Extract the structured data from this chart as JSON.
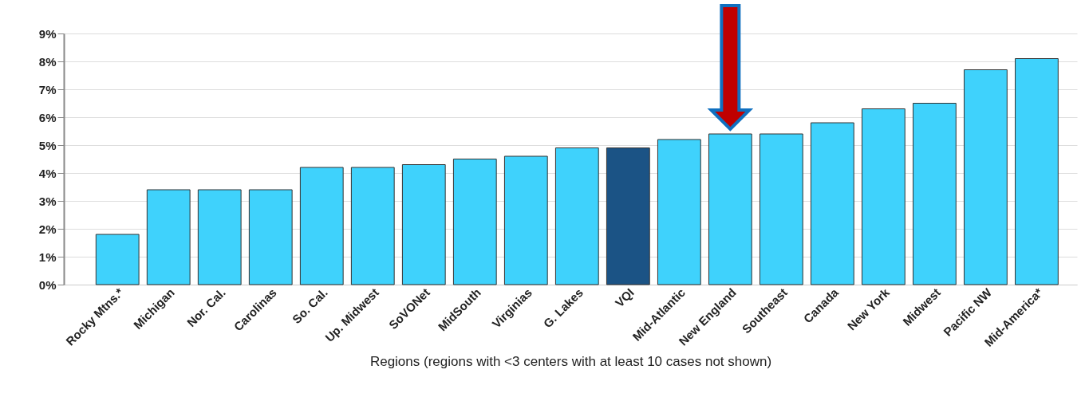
{
  "chart_data": {
    "type": "bar",
    "xlabel": "Regions (regions with <3 centers with at least 10 cases not shown)",
    "categories": [
      "Rocky Mtns.*",
      "Michigan",
      "Nor. Cal.",
      "Carolinas",
      "So. Cal.",
      "Up. Midwest",
      "SoVONet",
      "MidSouth",
      "Virginias",
      "G. Lakes",
      "VQI",
      "Mid-Atlantic",
      "New England",
      "Southeast",
      "Canada",
      "New York",
      "Midwest",
      "Pacific NW",
      "Mid-America*"
    ],
    "values": [
      1.8,
      3.4,
      3.4,
      3.4,
      4.2,
      4.2,
      4.3,
      4.5,
      4.6,
      4.9,
      4.9,
      5.2,
      5.4,
      5.4,
      5.8,
      6.3,
      6.5,
      7.7,
      8.1
    ],
    "colors": [
      "#3fd2fc",
      "#3fd2fc",
      "#3fd2fc",
      "#3fd2fc",
      "#3fd2fc",
      "#3fd2fc",
      "#3fd2fc",
      "#3fd2fc",
      "#3fd2fc",
      "#3fd2fc",
      "#1b5385",
      "#3fd2fc",
      "#3fd2fc",
      "#3fd2fc",
      "#3fd2fc",
      "#3fd2fc",
      "#3fd2fc",
      "#3fd2fc",
      "#3fd2fc"
    ],
    "ylim": [
      0,
      9
    ],
    "yticks": [
      {
        "value": 0,
        "label": "0%"
      },
      {
        "value": 1,
        "label": "1%"
      },
      {
        "value": 2,
        "label": "2%"
      },
      {
        "value": 3,
        "label": "3%"
      },
      {
        "value": 4,
        "label": "4%"
      },
      {
        "value": 5,
        "label": "5%"
      },
      {
        "value": 6,
        "label": "6%"
      },
      {
        "value": 7,
        "label": "7%"
      },
      {
        "value": 8,
        "label": "8%"
      },
      {
        "value": 9,
        "label": "9%"
      }
    ],
    "grid": "y"
  }
}
